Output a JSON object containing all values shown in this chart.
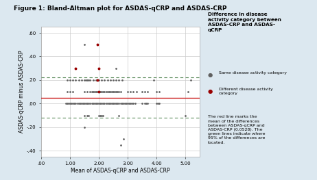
{
  "title": "Figure 1: Bland-Altman plot for ASDAS-qCRP and ASDAS-CRP",
  "xlabel": "Mean of ASDAS-qCRP and ASDAS-CRP",
  "ylabel": "ASDAS-qCRP minus ASDAS-CRP",
  "xlim": [
    0.0,
    5.5
  ],
  "ylim": [
    -0.45,
    0.65
  ],
  "xticks": [
    0.0,
    1.0,
    2.0,
    3.0,
    4.0,
    5.0
  ],
  "yticks": [
    -0.4,
    -0.2,
    0.0,
    0.2,
    0.4,
    0.6
  ],
  "xticklabels": [
    ".00",
    "1.00",
    "2.00",
    "3.00",
    "4.00",
    "5.00"
  ],
  "yticklabels": [
    "-.40",
    "-.20",
    ".00",
    ".20",
    ".40",
    ".60"
  ],
  "mean_line": 0.05,
  "upper_loa": 0.22,
  "lower_loa": -0.12,
  "mean_line_color": "#cc2222",
  "loa_color": "#5a8a5a",
  "fig_bg": "#dce8f0",
  "plot_bg": "#ffffff",
  "grid_color": "#cccccc",
  "legend_title": "Difference in disease\nactivity category between\nASDAS-CRP and ASDAS-\nqCRP",
  "legend_same": "Same disease activity category",
  "legend_diff": "Different disease activity\ncategory",
  "annotation": "The red line marks the\nmean of the differences\nbetween ASDAS-qCRP and\nASDAS-CRP (0.0528). The\ngreen lines indicate where\n95% of the differences are\nlocated.",
  "same_color": "#606060",
  "diff_color": "#990000",
  "same_points": [
    [
      0.85,
      0.0
    ],
    [
      0.9,
      0.0
    ],
    [
      0.95,
      0.0
    ],
    [
      1.0,
      0.0
    ],
    [
      1.05,
      0.0
    ],
    [
      1.1,
      0.0
    ],
    [
      1.15,
      0.0
    ],
    [
      1.2,
      0.0
    ],
    [
      1.25,
      0.0
    ],
    [
      1.3,
      0.0
    ],
    [
      1.35,
      0.0
    ],
    [
      1.4,
      0.0
    ],
    [
      1.45,
      0.0
    ],
    [
      1.5,
      0.0
    ],
    [
      1.55,
      0.0
    ],
    [
      1.6,
      0.0
    ],
    [
      1.65,
      0.0
    ],
    [
      1.7,
      0.0
    ],
    [
      1.75,
      0.0
    ],
    [
      1.8,
      0.0
    ],
    [
      1.85,
      0.0
    ],
    [
      1.9,
      0.0
    ],
    [
      1.95,
      0.0
    ],
    [
      2.0,
      0.0
    ],
    [
      2.05,
      0.0
    ],
    [
      2.1,
      0.0
    ],
    [
      2.15,
      0.0
    ],
    [
      2.2,
      0.0
    ],
    [
      2.25,
      0.0
    ],
    [
      2.3,
      0.0
    ],
    [
      2.35,
      0.0
    ],
    [
      2.4,
      0.0
    ],
    [
      2.45,
      0.0
    ],
    [
      2.5,
      0.0
    ],
    [
      2.55,
      0.0
    ],
    [
      2.6,
      0.0
    ],
    [
      2.65,
      0.0
    ],
    [
      2.7,
      0.0
    ],
    [
      2.75,
      0.0
    ],
    [
      2.8,
      0.0
    ],
    [
      2.85,
      0.0
    ],
    [
      2.9,
      0.0
    ],
    [
      2.95,
      0.0
    ],
    [
      3.0,
      0.0
    ],
    [
      3.05,
      0.0
    ],
    [
      3.1,
      0.0
    ],
    [
      3.15,
      0.0
    ],
    [
      3.2,
      0.0
    ],
    [
      3.25,
      0.0
    ],
    [
      3.5,
      0.0
    ],
    [
      3.6,
      0.0
    ],
    [
      3.65,
      0.0
    ],
    [
      3.7,
      0.0
    ],
    [
      4.0,
      0.0
    ],
    [
      4.05,
      0.0
    ],
    [
      4.1,
      0.0
    ],
    [
      0.9,
      0.1
    ],
    [
      1.0,
      0.1
    ],
    [
      1.1,
      0.1
    ],
    [
      1.5,
      0.1
    ],
    [
      1.6,
      0.1
    ],
    [
      1.7,
      0.1
    ],
    [
      1.75,
      0.1
    ],
    [
      1.8,
      0.1
    ],
    [
      1.85,
      0.1
    ],
    [
      1.9,
      0.1
    ],
    [
      1.95,
      0.1
    ],
    [
      2.0,
      0.1
    ],
    [
      2.05,
      0.1
    ],
    [
      2.1,
      0.1
    ],
    [
      2.15,
      0.1
    ],
    [
      2.2,
      0.1
    ],
    [
      2.25,
      0.1
    ],
    [
      2.3,
      0.1
    ],
    [
      2.35,
      0.1
    ],
    [
      2.4,
      0.1
    ],
    [
      2.45,
      0.1
    ],
    [
      2.5,
      0.1
    ],
    [
      2.55,
      0.1
    ],
    [
      2.6,
      0.1
    ],
    [
      2.65,
      0.1
    ],
    [
      2.7,
      0.1
    ],
    [
      2.75,
      0.1
    ],
    [
      3.0,
      0.1
    ],
    [
      3.1,
      0.1
    ],
    [
      3.2,
      0.1
    ],
    [
      3.3,
      0.1
    ],
    [
      3.5,
      0.1
    ],
    [
      3.6,
      0.1
    ],
    [
      3.7,
      0.1
    ],
    [
      4.0,
      0.1
    ],
    [
      4.1,
      0.1
    ],
    [
      5.1,
      0.1
    ],
    [
      0.9,
      0.2
    ],
    [
      1.0,
      0.2
    ],
    [
      1.1,
      0.2
    ],
    [
      1.2,
      0.2
    ],
    [
      1.3,
      0.2
    ],
    [
      1.4,
      0.2
    ],
    [
      1.5,
      0.2
    ],
    [
      1.55,
      0.2
    ],
    [
      1.6,
      0.2
    ],
    [
      1.65,
      0.2
    ],
    [
      1.7,
      0.2
    ],
    [
      1.8,
      0.2
    ],
    [
      1.9,
      0.2
    ],
    [
      2.0,
      0.2
    ],
    [
      2.1,
      0.2
    ],
    [
      2.2,
      0.2
    ],
    [
      2.3,
      0.2
    ],
    [
      2.4,
      0.2
    ],
    [
      2.5,
      0.2
    ],
    [
      2.6,
      0.2
    ],
    [
      2.7,
      0.2
    ],
    [
      2.8,
      0.2
    ],
    [
      3.9,
      0.2
    ],
    [
      5.2,
      0.2
    ],
    [
      1.5,
      -0.1
    ],
    [
      1.6,
      -0.1
    ],
    [
      1.65,
      -0.1
    ],
    [
      2.0,
      -0.1
    ],
    [
      2.05,
      -0.1
    ],
    [
      2.1,
      -0.1
    ],
    [
      2.15,
      -0.1
    ],
    [
      2.7,
      -0.1
    ],
    [
      5.0,
      -0.1
    ],
    [
      1.5,
      -0.2
    ],
    [
      2.85,
      -0.3
    ],
    [
      1.5,
      0.5
    ],
    [
      2.6,
      0.3
    ],
    [
      2.75,
      -0.35
    ]
  ],
  "diff_points": [
    [
      1.95,
      0.5
    ],
    [
      1.2,
      0.3
    ],
    [
      2.0,
      0.3
    ],
    [
      1.95,
      0.2
    ],
    [
      2.0,
      0.1
    ]
  ]
}
